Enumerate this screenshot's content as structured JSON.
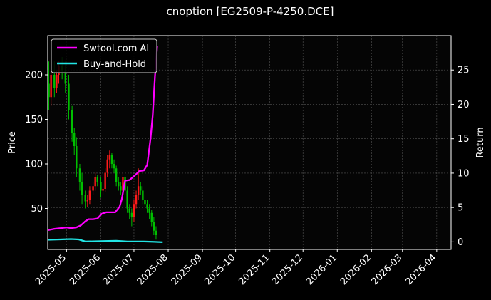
{
  "chart_data": {
    "type": "line",
    "title": "cnoption [EG2509-P-4250.DCE]",
    "ylabel": "Price",
    "y2label": "Return",
    "xlabel": "",
    "x_ticks": [
      "2025-05",
      "2025-06",
      "2025-07",
      "2025-08",
      "2025-09",
      "2025-10",
      "2025-11",
      "2025-12",
      "2026-01",
      "2026-02",
      "2026-03",
      "2026-04"
    ],
    "x_range": [
      "2025-04-14",
      "2026-04-14"
    ],
    "y_ticks": [
      50,
      100,
      150,
      200
    ],
    "y_range": [
      4,
      244
    ],
    "y2_ticks": [
      0,
      5,
      10,
      15,
      20,
      25
    ],
    "y2_range": [
      -1.1,
      30
    ],
    "grid": true,
    "legend_position": "top-left",
    "colors": {
      "strategy": "#ff00ff",
      "buy_hold": "#22e5e5",
      "candle_up": "#ff1a1a",
      "candle_down": "#00c000"
    },
    "series": [
      {
        "name": "Swtool.com AI",
        "axis": "right",
        "x": [
          "2025-04-14",
          "2025-04-20",
          "2025-04-26",
          "2025-05-01",
          "2025-05-05",
          "2025-05-10",
          "2025-05-14",
          "2025-05-18",
          "2025-05-21",
          "2025-05-25",
          "2025-05-29",
          "2025-06-02",
          "2025-06-06",
          "2025-06-10",
          "2025-06-14",
          "2025-06-18",
          "2025-06-20",
          "2025-06-23",
          "2025-06-27",
          "2025-07-02",
          "2025-07-06",
          "2025-07-10",
          "2025-07-13",
          "2025-07-16",
          "2025-07-18",
          "2025-07-20",
          "2025-07-22"
        ],
        "values": [
          1.7,
          1.9,
          2.0,
          2.1,
          2.0,
          2.1,
          2.4,
          3.0,
          3.3,
          3.3,
          3.4,
          4.1,
          4.3,
          4.3,
          4.3,
          5.1,
          6.2,
          8.9,
          9.0,
          9.7,
          10.3,
          10.4,
          11.2,
          15.0,
          18.4,
          24.0,
          28.5
        ]
      },
      {
        "name": "Buy-and-Hold",
        "axis": "right",
        "x": [
          "2025-04-14",
          "2025-04-25",
          "2025-05-05",
          "2025-05-12",
          "2025-05-18",
          "2025-06-01",
          "2025-06-15",
          "2025-06-25",
          "2025-07-10",
          "2025-07-20",
          "2025-07-27"
        ],
        "values": [
          0.3,
          0.35,
          0.4,
          0.35,
          0.05,
          0.1,
          0.15,
          0.05,
          0.05,
          0.0,
          -0.05
        ]
      }
    ],
    "candles": {
      "x": [
        "2025-04-15",
        "2025-04-17",
        "2025-04-20",
        "2025-04-22",
        "2025-04-24",
        "2025-04-27",
        "2025-04-30",
        "2025-05-03",
        "2025-05-06",
        "2025-05-08",
        "2025-05-10",
        "2025-05-13",
        "2025-05-15",
        "2025-05-18",
        "2025-05-20",
        "2025-05-22",
        "2025-05-25",
        "2025-05-27",
        "2025-05-29",
        "2025-06-01",
        "2025-06-03",
        "2025-06-05",
        "2025-06-07",
        "2025-06-09",
        "2025-06-11",
        "2025-06-13",
        "2025-06-15",
        "2025-06-17",
        "2025-06-19",
        "2025-06-21",
        "2025-06-23",
        "2025-06-25",
        "2025-06-27",
        "2025-06-29",
        "2025-07-01",
        "2025-07-03",
        "2025-07-05",
        "2025-07-07",
        "2025-07-09",
        "2025-07-11",
        "2025-07-13",
        "2025-07-15",
        "2025-07-17",
        "2025-07-19",
        "2025-07-21"
      ],
      "open": [
        190,
        175,
        200,
        185,
        200,
        210,
        205,
        190,
        160,
        135,
        120,
        95,
        80,
        65,
        58,
        60,
        70,
        75,
        85,
        80,
        70,
        72,
        90,
        105,
        110,
        100,
        95,
        80,
        75,
        70,
        85,
        70,
        50,
        45,
        40,
        55,
        65,
        75,
        70,
        60,
        55,
        50,
        45,
        35,
        25
      ],
      "close": [
        175,
        200,
        185,
        200,
        210,
        205,
        190,
        160,
        135,
        120,
        95,
        80,
        65,
        58,
        60,
        70,
        75,
        85,
        80,
        70,
        72,
        90,
        105,
        110,
        100,
        95,
        80,
        75,
        70,
        85,
        70,
        50,
        45,
        40,
        55,
        65,
        75,
        70,
        60,
        55,
        50,
        45,
        35,
        25,
        20
      ],
      "high": [
        215,
        210,
        215,
        205,
        215,
        220,
        215,
        200,
        165,
        140,
        130,
        100,
        90,
        70,
        65,
        75,
        80,
        90,
        88,
        85,
        78,
        95,
        110,
        115,
        112,
        105,
        98,
        85,
        80,
        90,
        88,
        75,
        55,
        50,
        60,
        70,
        95,
        80,
        75,
        65,
        60,
        55,
        48,
        40,
        30
      ],
      "low": [
        160,
        165,
        175,
        180,
        190,
        195,
        180,
        150,
        125,
        110,
        85,
        70,
        55,
        50,
        52,
        55,
        65,
        70,
        75,
        62,
        65,
        68,
        85,
        95,
        95,
        90,
        75,
        70,
        65,
        65,
        65,
        45,
        38,
        30,
        35,
        50,
        60,
        65,
        55,
        50,
        45,
        38,
        30,
        20,
        15
      ]
    }
  }
}
